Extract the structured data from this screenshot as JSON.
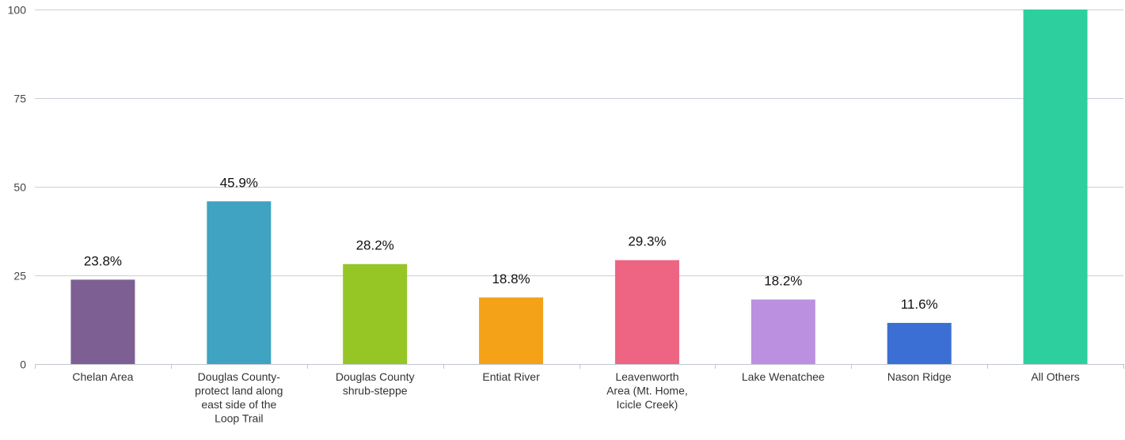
{
  "chart_data": {
    "type": "bar",
    "title": "",
    "xlabel": "",
    "ylabel": "",
    "ylim": [
      0,
      100
    ],
    "yticks": [
      0,
      25,
      50,
      75,
      100
    ],
    "grid": true,
    "legend": "none",
    "categories": [
      [
        "Chelan Area"
      ],
      [
        "Douglas County-",
        "protect land along",
        "east side of the",
        "Loop Trail"
      ],
      [
        "Douglas County",
        "shrub-steppe"
      ],
      [
        "Entiat River"
      ],
      [
        "Leavenworth",
        "Area (Mt. Home,",
        "Icicle Creek)"
      ],
      [
        "Lake Wenatchee"
      ],
      [
        "Nason Ridge"
      ],
      [
        "All Others"
      ]
    ],
    "values": [
      23.8,
      45.9,
      28.2,
      18.8,
      29.3,
      18.2,
      11.6,
      100
    ],
    "data_labels": [
      "23.8%",
      "45.9%",
      "28.2%",
      "18.8%",
      "29.3%",
      "18.2%",
      "11.6%",
      ""
    ],
    "colors": [
      "#7e5f93",
      "#3fa3c1",
      "#95c625",
      "#f4a319",
      "#ee6483",
      "#bc90e0",
      "#3b6fd3",
      "#2ecf9e"
    ]
  }
}
